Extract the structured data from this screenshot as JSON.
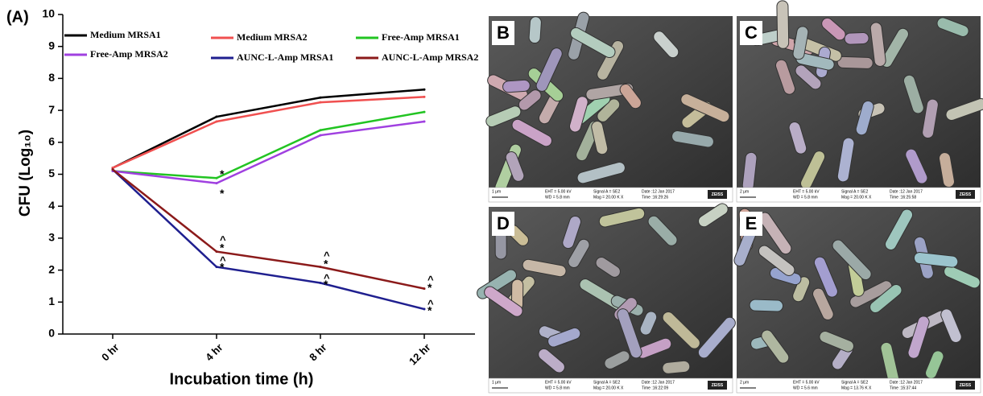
{
  "chart_data": {
    "type": "line",
    "panel_label": "(A)",
    "y_label": "CFU (Log₁₀)",
    "x_label": "Incubation time (h)",
    "categories": [
      "0 hr",
      "4 hr",
      "8 hr",
      "12 hr"
    ],
    "ylim": [
      0,
      10
    ],
    "yticks": [
      0,
      1,
      2,
      3,
      4,
      5,
      6,
      7,
      8,
      9,
      10
    ],
    "series": [
      {
        "name": "Medium MRSA1",
        "color": "#000000",
        "values": [
          5.2,
          6.8,
          7.4,
          7.65
        ]
      },
      {
        "name": "Medium MRSA2",
        "color": "#f05050",
        "values": [
          5.2,
          6.65,
          7.25,
          7.42
        ]
      },
      {
        "name": "Free-Amp MRSA1",
        "color": "#22c422",
        "values": [
          5.1,
          4.88,
          6.38,
          6.95
        ]
      },
      {
        "name": "Free-Amp MRSA2",
        "color": "#a040e0",
        "values": [
          5.1,
          4.72,
          6.22,
          6.65
        ]
      },
      {
        "name": "AUNC-L-Amp MRSA1",
        "color": "#1f1f8f",
        "values": [
          5.15,
          2.1,
          1.6,
          0.78
        ]
      },
      {
        "name": "AUNC-L-Amp MRSA2",
        "color": "#8b1a1a",
        "values": [
          5.15,
          2.58,
          2.1,
          1.42
        ]
      }
    ],
    "annotations": [
      {
        "text": "*",
        "x": "4 hr",
        "y": 5.05
      },
      {
        "text": "*",
        "x": "4 hr",
        "y": 4.45
      },
      {
        "text": "^",
        "x": "4 hr",
        "y": 3.05
      },
      {
        "text": "*",
        "x": "4 hr",
        "y": 2.75
      },
      {
        "text": "^",
        "x": "4 hr",
        "y": 2.4
      },
      {
        "text": "*",
        "x": "4 hr",
        "y": 2.15
      },
      {
        "text": "^",
        "x": "8 hr",
        "y": 2.55
      },
      {
        "text": "*",
        "x": "8 hr",
        "y": 2.25
      },
      {
        "text": "^",
        "x": "8 hr",
        "y": 1.85
      },
      {
        "text": "*",
        "x": "8 hr",
        "y": 1.6
      },
      {
        "text": "^",
        "x": "12 hr",
        "y": 1.8
      },
      {
        "text": "*",
        "x": "12 hr",
        "y": 1.5
      },
      {
        "text": "^",
        "x": "12 hr",
        "y": 1.05
      },
      {
        "text": "*",
        "x": "12 hr",
        "y": 0.78
      }
    ]
  },
  "panels": [
    {
      "label": "B",
      "scale": "1 μm",
      "eht": "EHT = 5.00 kV",
      "wd": "WD = 5.8 mm",
      "signal": "Signal A = SE2",
      "mag": "Mag = 20.00 K X",
      "date": "Date :12 Jan 2017",
      "time": "Time :16:29:26",
      "logo": "ZEISS"
    },
    {
      "label": "C",
      "scale": "2 μm",
      "eht": "EHT = 5.00 kV",
      "wd": "WD = 5.8 mm",
      "signal": "Signal A = SE2",
      "mag": "Mag = 20.00 K X",
      "date": "Date :12 Jan 2017",
      "time": "Time :16:25:58",
      "logo": "ZEISS"
    },
    {
      "label": "D",
      "scale": "1 μm",
      "eht": "EHT = 5.00 kV",
      "wd": "WD = 5.8 mm",
      "signal": "Signal A = SE2",
      "mag": "Mag = 20.00 K X",
      "date": "Date :12 Jan 2017",
      "time": "Time :16:22:09",
      "logo": "ZEISS"
    },
    {
      "label": "E",
      "scale": "2 μm",
      "eht": "EHT = 5.00 kV",
      "wd": "WD = 5.6 mm",
      "signal": "Signal A = SE2",
      "mag": "Mag = 13.76 K X",
      "date": "Date :12 Jan 2017",
      "time": "Time :15:37:44",
      "logo": "ZEISS"
    }
  ]
}
